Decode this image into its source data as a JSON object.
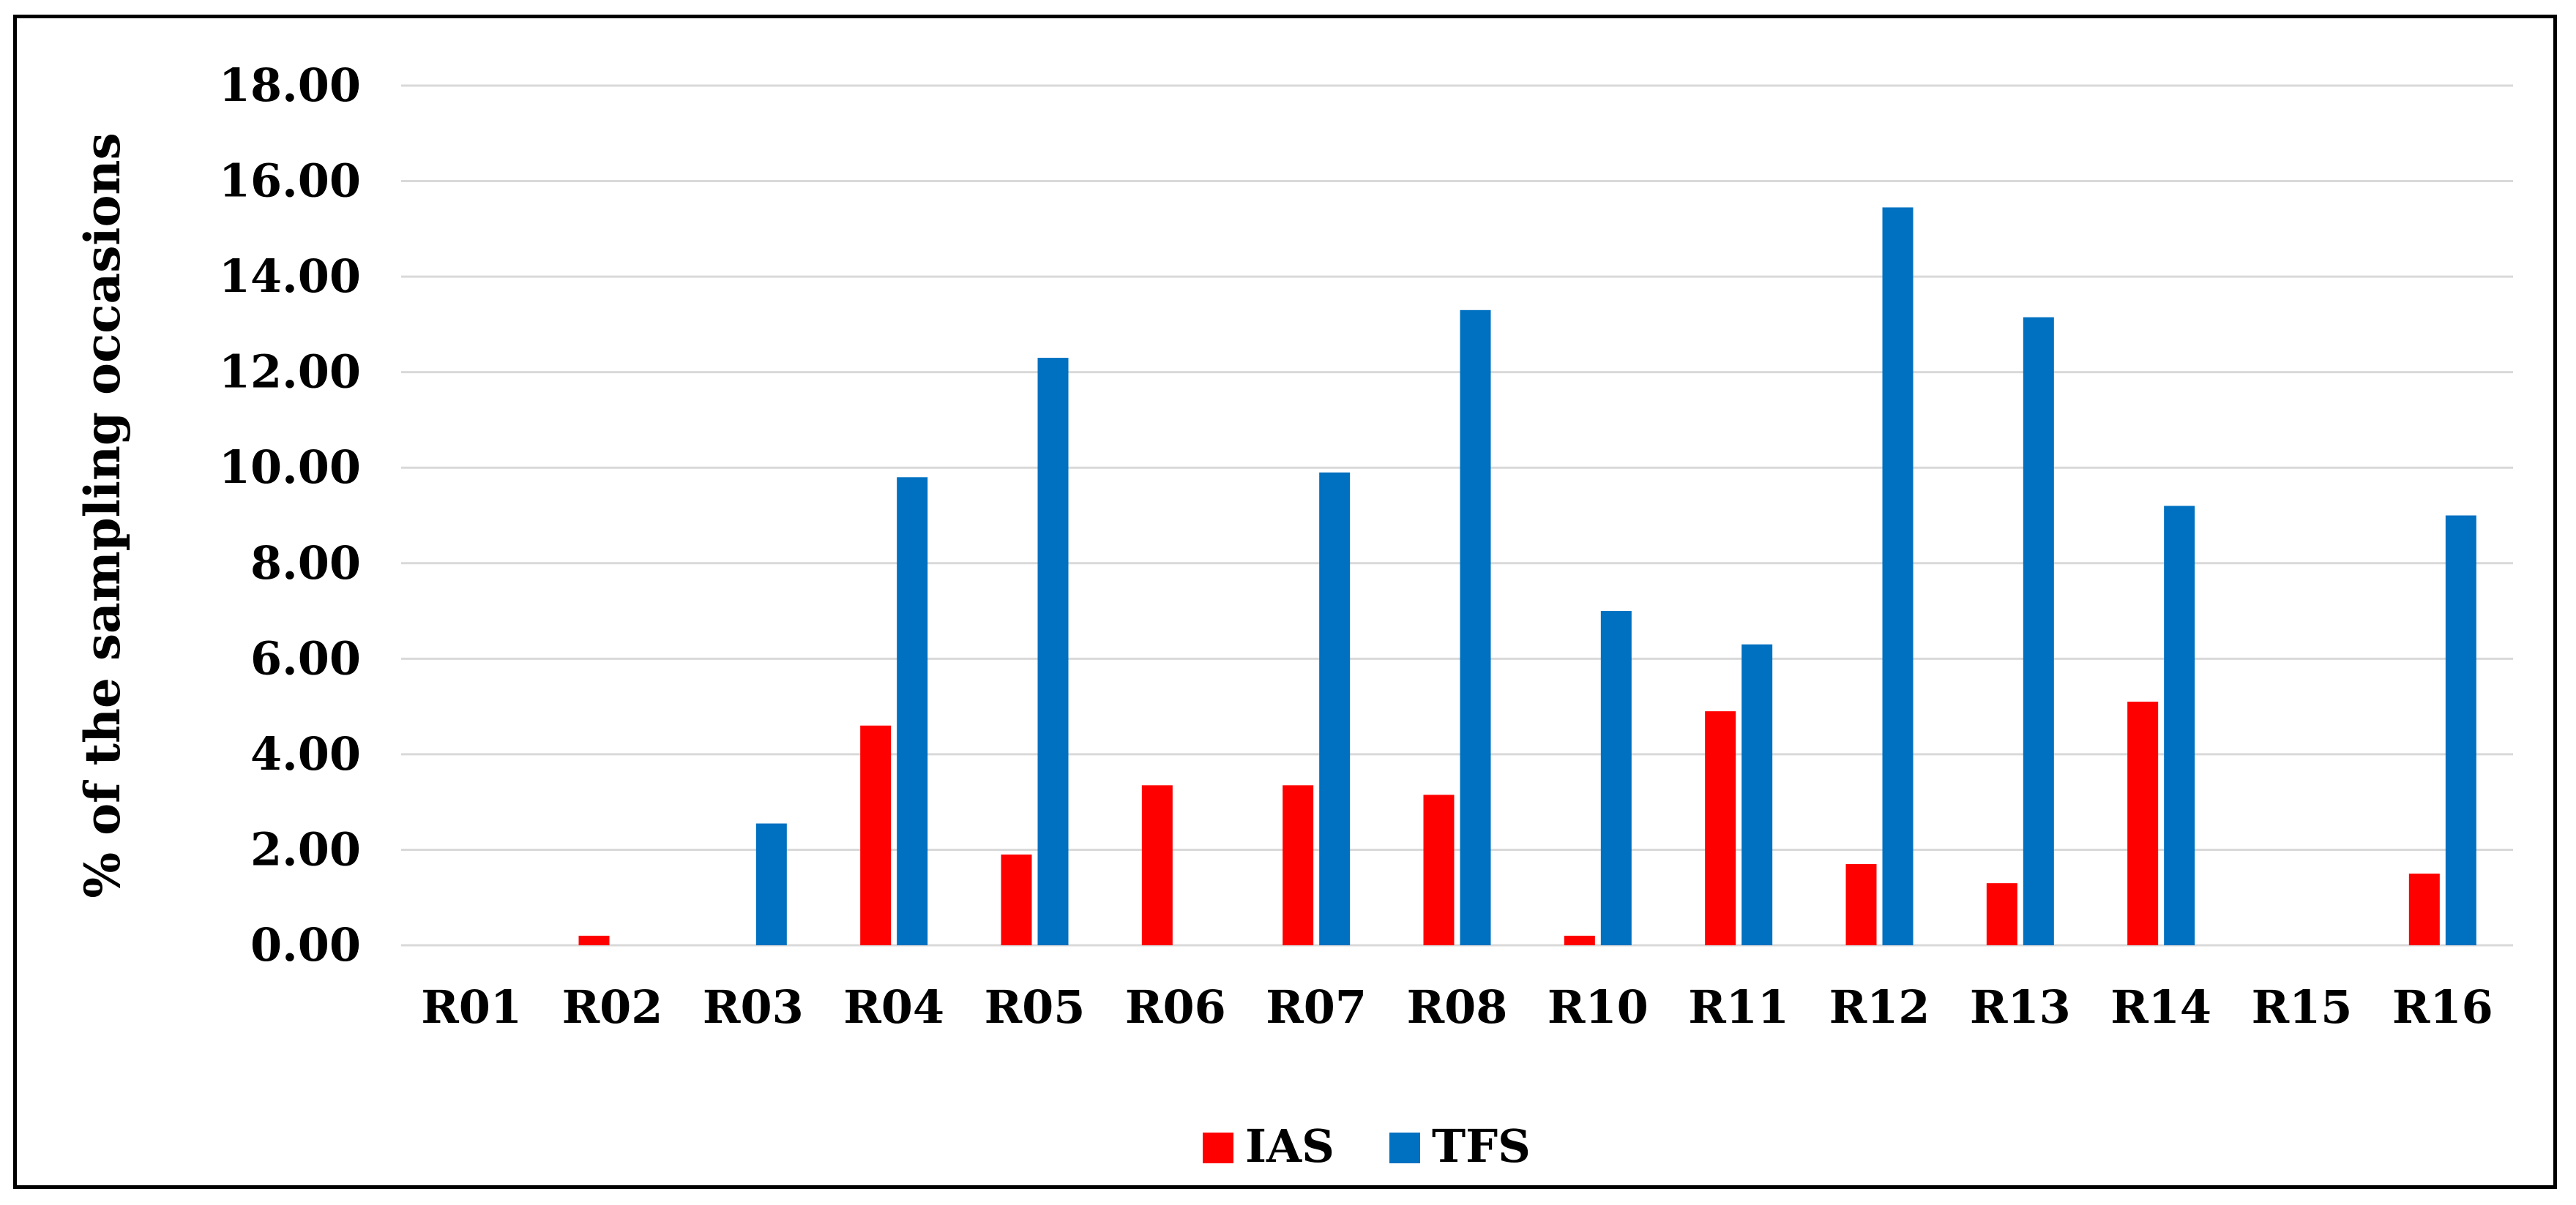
{
  "chart_data": {
    "type": "bar",
    "title": "",
    "xlabel": "",
    "ylabel": "% of the sampling occasions",
    "ylim": [
      0,
      18
    ],
    "ytick_step": 2,
    "ytick_labels": [
      "0.00",
      "2.00",
      "4.00",
      "6.00",
      "8.00",
      "10.00",
      "12.00",
      "14.00",
      "16.00",
      "18.00"
    ],
    "grid": true,
    "legend_position": "bottom-center",
    "categories": [
      "R01",
      "R02",
      "R03",
      "R04",
      "R05",
      "R06",
      "R07",
      "R08",
      "R10",
      "R11",
      "R12",
      "R13",
      "R14",
      "R15",
      "R16"
    ],
    "series": [
      {
        "name": "IAS",
        "color": "#ff0000",
        "values": [
          0,
          0.2,
          0,
          4.6,
          1.9,
          3.35,
          3.35,
          3.15,
          0.2,
          4.9,
          1.7,
          1.3,
          5.1,
          0,
          1.5
        ]
      },
      {
        "name": "TFS",
        "color": "#0070c0",
        "values": [
          0,
          0,
          2.55,
          9.8,
          12.3,
          0,
          9.9,
          13.3,
          7.0,
          6.3,
          15.45,
          13.15,
          9.2,
          0,
          9.0
        ]
      }
    ]
  }
}
